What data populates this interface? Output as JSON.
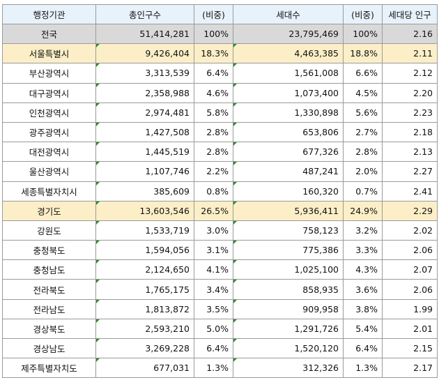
{
  "headers": [
    "행정기관",
    "총인구수",
    "(비중)",
    "세대수",
    "(비중)",
    "세대당 인구"
  ],
  "colors": {
    "header_bg": "#e8f2fb",
    "total_bg": "#d9d9d9",
    "highlight_bg": "#fcefc8",
    "error_marker": "#2e8b2e"
  },
  "rows": [
    {
      "name": "전국",
      "population": "51,414,281",
      "pop_share": "100%",
      "households": "23,795,469",
      "hh_share": "100%",
      "per_household": "2.16",
      "style": "total"
    },
    {
      "name": "서울특별시",
      "population": "9,426,404",
      "pop_share": "18.3%",
      "households": "4,463,385",
      "hh_share": "18.8%",
      "per_household": "2.11",
      "style": "highlight"
    },
    {
      "name": "부산광역시",
      "population": "3,313,539",
      "pop_share": "6.4%",
      "households": "1,561,008",
      "hh_share": "6.6%",
      "per_household": "2.12",
      "style": "normal"
    },
    {
      "name": "대구광역시",
      "population": "2,358,988",
      "pop_share": "4.6%",
      "households": "1,073,400",
      "hh_share": "4.5%",
      "per_household": "2.20",
      "style": "normal"
    },
    {
      "name": "인천광역시",
      "population": "2,974,481",
      "pop_share": "5.8%",
      "households": "1,330,898",
      "hh_share": "5.6%",
      "per_household": "2.23",
      "style": "normal"
    },
    {
      "name": "광주광역시",
      "population": "1,427,508",
      "pop_share": "2.8%",
      "households": "653,806",
      "hh_share": "2.7%",
      "per_household": "2.18",
      "style": "normal"
    },
    {
      "name": "대전광역시",
      "population": "1,445,519",
      "pop_share": "2.8%",
      "households": "677,326",
      "hh_share": "2.8%",
      "per_household": "2.13",
      "style": "normal"
    },
    {
      "name": "울산광역시",
      "population": "1,107,746",
      "pop_share": "2.2%",
      "households": "487,241",
      "hh_share": "2.0%",
      "per_household": "2.27",
      "style": "normal"
    },
    {
      "name": "세종특별자치시",
      "population": "385,609",
      "pop_share": "0.8%",
      "households": "160,320",
      "hh_share": "0.7%",
      "per_household": "2.41",
      "style": "normal"
    },
    {
      "name": "경기도",
      "population": "13,603,546",
      "pop_share": "26.5%",
      "households": "5,936,411",
      "hh_share": "24.9%",
      "per_household": "2.29",
      "style": "highlight"
    },
    {
      "name": "강원도",
      "population": "1,533,719",
      "pop_share": "3.0%",
      "households": "758,123",
      "hh_share": "3.2%",
      "per_household": "2.02",
      "style": "normal"
    },
    {
      "name": "충청북도",
      "population": "1,594,056",
      "pop_share": "3.1%",
      "households": "775,386",
      "hh_share": "3.3%",
      "per_household": "2.06",
      "style": "normal"
    },
    {
      "name": "충청남도",
      "population": "2,124,650",
      "pop_share": "4.1%",
      "households": "1,025,100",
      "hh_share": "4.3%",
      "per_household": "2.07",
      "style": "normal"
    },
    {
      "name": "전라북도",
      "population": "1,765,175",
      "pop_share": "3.4%",
      "households": "858,935",
      "hh_share": "3.6%",
      "per_household": "2.06",
      "style": "normal"
    },
    {
      "name": "전라남도",
      "population": "1,813,872",
      "pop_share": "3.5%",
      "households": "909,958",
      "hh_share": "3.8%",
      "per_household": "1.99",
      "style": "normal"
    },
    {
      "name": "경상북도",
      "population": "2,593,210",
      "pop_share": "5.0%",
      "households": "1,291,726",
      "hh_share": "5.4%",
      "per_household": "2.01",
      "style": "normal"
    },
    {
      "name": "경상남도",
      "population": "3,269,228",
      "pop_share": "6.4%",
      "households": "1,520,120",
      "hh_share": "6.4%",
      "per_household": "2.15",
      "style": "normal"
    },
    {
      "name": "제주특별자치도",
      "population": "677,031",
      "pop_share": "1.3%",
      "households": "312,326",
      "hh_share": "1.3%",
      "per_household": "2.17",
      "style": "normal"
    }
  ]
}
